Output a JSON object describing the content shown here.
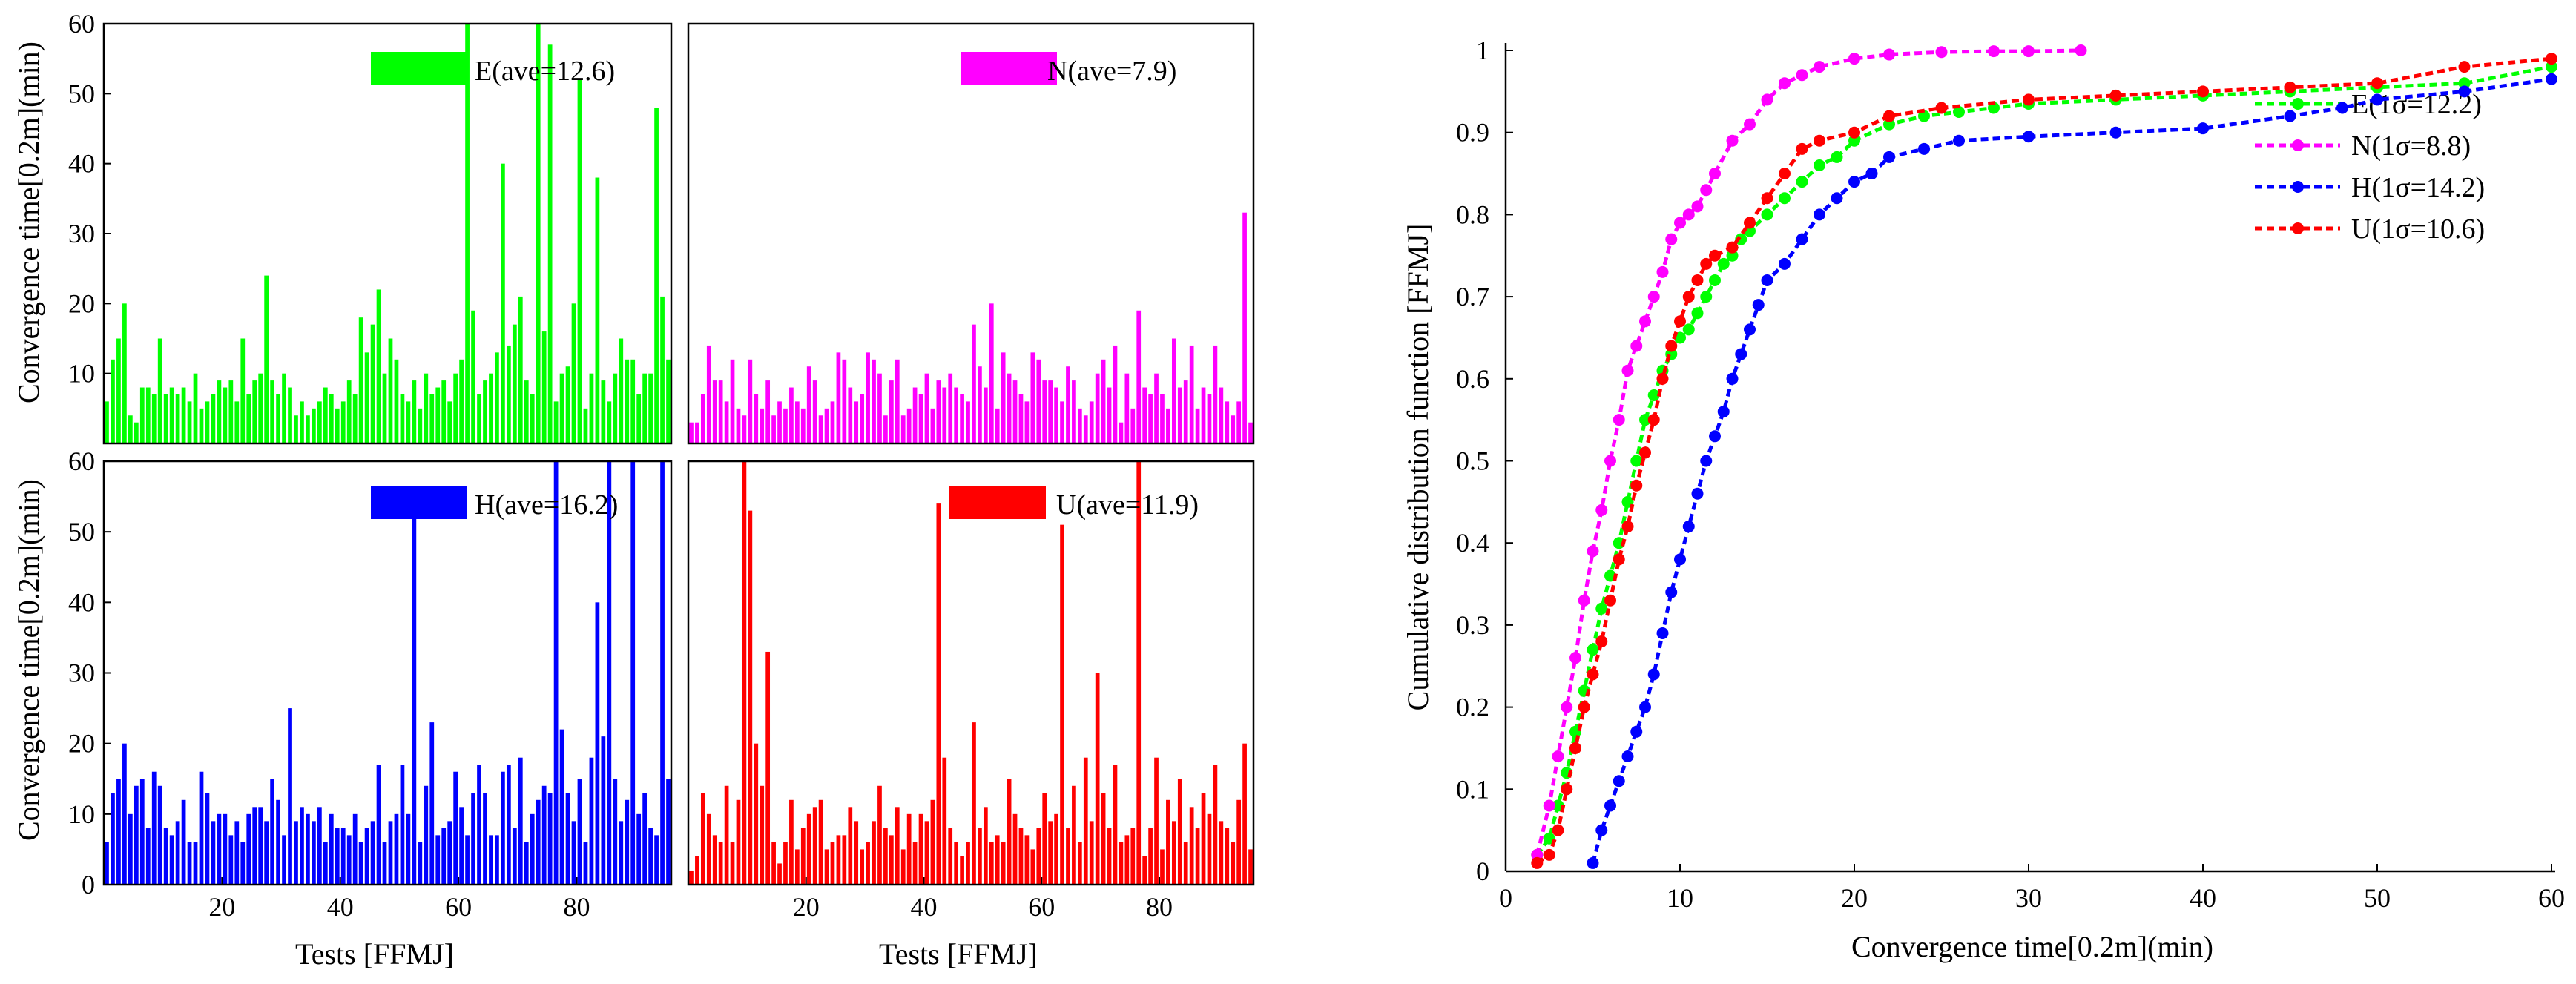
{
  "figure": {
    "left_ylabel": "Convergence time[0.2m](min)",
    "left_xlabel": "Tests [FFMJ]",
    "right_ylabel": "Cumulative distribution function [FFMJ]",
    "right_xlabel": "Convergence time[0.2m](min)"
  },
  "chart_data": [
    {
      "type": "bar",
      "panel": "E",
      "color": "#00ff00",
      "legend": "E(ave=12.6)",
      "ylim": [
        0,
        60
      ],
      "xlim": [
        0,
        96
      ],
      "yticks": [
        "10",
        "20",
        "30",
        "40",
        "50",
        "60"
      ],
      "xticks": [],
      "ylabel": "Convergence time[0.2m](min)",
      "xlabel": "",
      "values": [
        6,
        12,
        15,
        20,
        4,
        3,
        8,
        8,
        7,
        15,
        7,
        8,
        7,
        8,
        6,
        10,
        5,
        6,
        7,
        9,
        8,
        9,
        6,
        15,
        7,
        9,
        10,
        24,
        9,
        7,
        10,
        8,
        4,
        6,
        4,
        5,
        6,
        8,
        7,
        5,
        6,
        9,
        7,
        18,
        13,
        17,
        22,
        10,
        15,
        12,
        7,
        6,
        9,
        5,
        10,
        7,
        8,
        9,
        6,
        10,
        12,
        60,
        19,
        7,
        9,
        10,
        13,
        40,
        14,
        17,
        21,
        9,
        7,
        60,
        16,
        57,
        6,
        10,
        11,
        20,
        52,
        5,
        10,
        38,
        9,
        6,
        10,
        15,
        12,
        12,
        7,
        10,
        10,
        48,
        21,
        12
      ]
    },
    {
      "type": "bar",
      "panel": "N",
      "color": "#ff00ff",
      "legend": "N(ave=7.9)",
      "ylim": [
        0,
        60
      ],
      "xlim": [
        0,
        96
      ],
      "yticks": [],
      "xticks": [],
      "values": [
        3,
        3,
        7,
        14,
        9,
        9,
        6,
        12,
        5,
        4,
        12,
        7,
        5,
        9,
        4,
        6,
        5,
        8,
        6,
        5,
        11,
        9,
        4,
        5,
        6,
        13,
        12,
        8,
        6,
        7,
        13,
        12,
        10,
        4,
        9,
        12,
        4,
        5,
        8,
        7,
        10,
        5,
        9,
        8,
        10,
        8,
        7,
        6,
        17,
        11,
        8,
        20,
        5,
        13,
        10,
        9,
        7,
        6,
        13,
        12,
        9,
        9,
        8,
        6,
        11,
        9,
        5,
        4,
        6,
        10,
        12,
        8,
        14,
        3,
        10,
        5,
        19,
        8,
        7,
        10,
        7,
        5,
        15,
        8,
        9,
        14,
        5,
        8,
        7,
        14,
        8,
        6,
        4,
        6,
        33,
        3
      ]
    },
    {
      "type": "bar",
      "panel": "H",
      "color": "#0000ff",
      "legend": "H(ave=16.2)",
      "ylim": [
        0,
        60
      ],
      "xlim": [
        0,
        96
      ],
      "yticks": [
        "0",
        "10",
        "20",
        "30",
        "40",
        "50",
        "60"
      ],
      "xticks": [
        "20",
        "40",
        "60",
        "80"
      ],
      "ylabel": "Convergence time[0.2m](min)",
      "xlabel": "Tests [FFMJ]",
      "values": [
        6,
        13,
        15,
        20,
        10,
        14,
        15,
        8,
        16,
        14,
        8,
        7,
        9,
        12,
        6,
        6,
        16,
        13,
        9,
        10,
        10,
        7,
        9,
        6,
        10,
        11,
        11,
        9,
        15,
        12,
        7,
        25,
        9,
        11,
        10,
        9,
        11,
        6,
        10,
        8,
        8,
        7,
        10,
        6,
        8,
        9,
        17,
        6,
        9,
        10,
        17,
        10,
        54,
        6,
        14,
        23,
        7,
        8,
        9,
        16,
        11,
        7,
        13,
        17,
        13,
        7,
        7,
        16,
        17,
        8,
        18,
        6,
        10,
        12,
        14,
        13,
        62,
        22,
        13,
        9,
        15,
        6,
        18,
        40,
        21,
        62,
        15,
        9,
        12,
        62,
        10,
        13,
        8,
        7,
        60,
        15
      ]
    },
    {
      "type": "bar",
      "panel": "U",
      "color": "#ff0000",
      "legend": "U(ave=11.9)",
      "ylim": [
        0,
        60
      ],
      "xlim": [
        0,
        96
      ],
      "yticks": [],
      "xticks": [
        "20",
        "40",
        "60",
        "80"
      ],
      "xlabel": "Tests [FFMJ]",
      "values": [
        2,
        4,
        13,
        10,
        7,
        6,
        14,
        6,
        12,
        60,
        53,
        20,
        14,
        33,
        6,
        3,
        6,
        12,
        5,
        8,
        10,
        11,
        12,
        5,
        6,
        7,
        7,
        11,
        9,
        5,
        6,
        9,
        14,
        8,
        7,
        11,
        5,
        10,
        6,
        10,
        9,
        12,
        54,
        18,
        8,
        6,
        4,
        6,
        23,
        8,
        11,
        6,
        7,
        6,
        15,
        10,
        8,
        7,
        5,
        8,
        13,
        9,
        10,
        51,
        8,
        14,
        6,
        18,
        9,
        30,
        13,
        8,
        17,
        6,
        7,
        8,
        62,
        4,
        8,
        18,
        5,
        12,
        9,
        15,
        6,
        11,
        8,
        13,
        10,
        17,
        9,
        8,
        6,
        12,
        20,
        5
      ]
    },
    {
      "type": "line",
      "title": "",
      "xlabel": "Convergence time[0.2m](min)",
      "ylabel": "Cumulative distribution function [FFMJ]",
      "xlim": [
        0,
        60
      ],
      "ylim": [
        0,
        1
      ],
      "xticks": [
        "0",
        "10",
        "20",
        "30",
        "40",
        "50",
        "60"
      ],
      "yticks": [
        "0",
        "0.1",
        "0.2",
        "0.3",
        "0.4",
        "0.5",
        "0.6",
        "0.7",
        "0.8",
        "0.9",
        "1"
      ],
      "legend_position": "right",
      "series": [
        {
          "name": "E(1σ=12.2)",
          "color": "#00ff00",
          "x": [
            1.8,
            2.5,
            3,
            3.5,
            4,
            4.5,
            5,
            5.5,
            6,
            6.5,
            7,
            7.5,
            8,
            8.5,
            9,
            9.5,
            10,
            10.5,
            11,
            11.5,
            12,
            12.5,
            13,
            13.5,
            14,
            15,
            16,
            17,
            18,
            19,
            20,
            22,
            24,
            26,
            28,
            30,
            35,
            40,
            45,
            50,
            55,
            60
          ],
          "y": [
            0.02,
            0.04,
            0.08,
            0.12,
            0.17,
            0.22,
            0.27,
            0.32,
            0.36,
            0.4,
            0.45,
            0.5,
            0.55,
            0.58,
            0.61,
            0.63,
            0.65,
            0.66,
            0.68,
            0.7,
            0.72,
            0.74,
            0.75,
            0.77,
            0.78,
            0.8,
            0.82,
            0.84,
            0.86,
            0.87,
            0.89,
            0.91,
            0.92,
            0.925,
            0.93,
            0.935,
            0.94,
            0.945,
            0.95,
            0.955,
            0.96,
            0.98
          ]
        },
        {
          "name": "N(1σ=8.8)",
          "color": "#ff00ff",
          "x": [
            1.8,
            2.5,
            3,
            3.5,
            4,
            4.5,
            5,
            5.5,
            6,
            6.5,
            7,
            7.5,
            8,
            8.5,
            9,
            9.5,
            10,
            10.5,
            11,
            11.5,
            12,
            13,
            14,
            15,
            16,
            17,
            18,
            20,
            22,
            25,
            28,
            30,
            33
          ],
          "y": [
            0.02,
            0.08,
            0.14,
            0.2,
            0.26,
            0.33,
            0.39,
            0.44,
            0.5,
            0.55,
            0.61,
            0.64,
            0.67,
            0.7,
            0.73,
            0.77,
            0.79,
            0.8,
            0.81,
            0.83,
            0.85,
            0.89,
            0.91,
            0.94,
            0.96,
            0.97,
            0.98,
            0.99,
            0.995,
            0.998,
            0.999,
            0.999,
            1.0
          ]
        },
        {
          "name": "H(1σ=14.2)",
          "color": "#0000ff",
          "x": [
            5,
            5.5,
            6,
            6.5,
            7,
            7.5,
            8,
            8.5,
            9,
            9.5,
            10,
            10.5,
            11,
            11.5,
            12,
            12.5,
            13,
            13.5,
            14,
            14.5,
            15,
            16,
            17,
            18,
            19,
            20,
            21,
            22,
            24,
            26,
            30,
            35,
            40,
            45,
            48,
            50,
            55,
            60
          ],
          "y": [
            0.01,
            0.05,
            0.08,
            0.11,
            0.14,
            0.17,
            0.2,
            0.24,
            0.29,
            0.34,
            0.38,
            0.42,
            0.46,
            0.5,
            0.53,
            0.56,
            0.6,
            0.63,
            0.66,
            0.69,
            0.72,
            0.74,
            0.77,
            0.8,
            0.82,
            0.84,
            0.85,
            0.87,
            0.88,
            0.89,
            0.895,
            0.9,
            0.905,
            0.92,
            0.93,
            0.94,
            0.95,
            0.965
          ]
        },
        {
          "name": "U(1σ=10.6)",
          "color": "#ff0000",
          "x": [
            1.8,
            2.5,
            3,
            3.5,
            4,
            4.5,
            5,
            5.5,
            6,
            6.5,
            7,
            7.5,
            8,
            8.5,
            9,
            9.5,
            10,
            10.5,
            11,
            11.5,
            12,
            13,
            14,
            15,
            16,
            17,
            18,
            20,
            22,
            25,
            30,
            35,
            40,
            45,
            50,
            55,
            60
          ],
          "y": [
            0.01,
            0.02,
            0.05,
            0.1,
            0.15,
            0.2,
            0.24,
            0.28,
            0.33,
            0.38,
            0.42,
            0.47,
            0.51,
            0.55,
            0.6,
            0.64,
            0.67,
            0.7,
            0.72,
            0.74,
            0.75,
            0.76,
            0.79,
            0.82,
            0.85,
            0.88,
            0.89,
            0.9,
            0.92,
            0.93,
            0.94,
            0.945,
            0.95,
            0.955,
            0.96,
            0.98,
            0.99
          ]
        }
      ]
    }
  ]
}
